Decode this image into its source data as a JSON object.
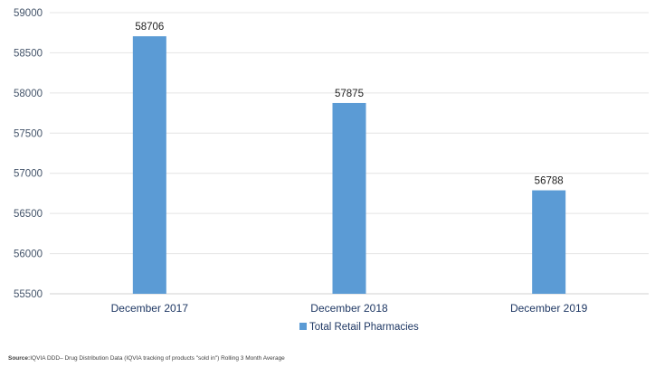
{
  "chart_data": {
    "type": "bar",
    "categories": [
      "December 2017",
      "December 2018",
      "December 2019"
    ],
    "series": [
      {
        "name": "Total Retail Pharmacies",
        "values": [
          58706,
          57875,
          56788
        ],
        "color": "#5b9bd5"
      }
    ],
    "title": "",
    "xlabel": "",
    "ylabel": "",
    "ylim": [
      55500,
      59000
    ],
    "yticks": [
      55500,
      56000,
      56500,
      57000,
      57500,
      58000,
      58500,
      59000
    ],
    "grid": true,
    "legend": "bottom-center",
    "data_labels": true
  },
  "source": {
    "prefix": "Source:",
    "text": "IQVIA DDD– Drug Distribution Data (IQVIA tracking of products \"sold in\")  Rolling 3 Month Average"
  }
}
